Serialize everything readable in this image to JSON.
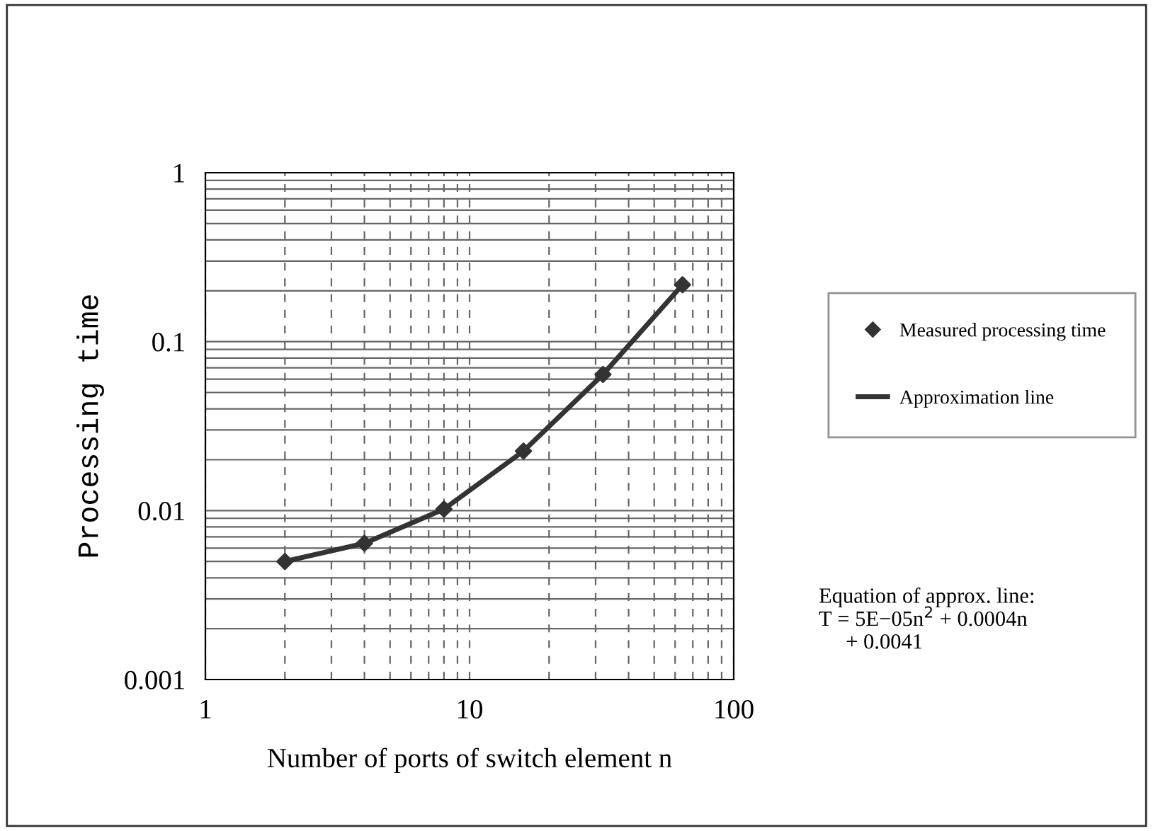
{
  "chart_data": {
    "type": "scatter",
    "xlabel": "Number of ports of switch element n",
    "ylabel": "Processing time",
    "log": "xy",
    "xlim": [
      1,
      100
    ],
    "ylim": [
      0.001,
      1
    ],
    "xticks": [
      1,
      10,
      100
    ],
    "yticks": [
      {
        "value": 0.001,
        "label": "0.001"
      },
      {
        "value": 0.01,
        "label": "0.01"
      },
      {
        "value": 0.1,
        "label": "0.1"
      },
      1
    ],
    "grid": true,
    "legend": "right",
    "series": [
      {
        "name": "Measured processing time",
        "marker": "diamond",
        "color": "#333333",
        "x": [
          2,
          4,
          8,
          16,
          32,
          64
        ],
        "values": [
          0.005,
          0.0064,
          0.0102,
          0.0225,
          0.064,
          0.217
        ]
      },
      {
        "name": "Approximation line",
        "type": "line",
        "marker": "none",
        "line_style": "solid",
        "color": "#333333",
        "x": [
          2,
          4,
          8,
          16,
          32,
          64
        ],
        "values": [
          0.005,
          0.0064,
          0.0102,
          0.0225,
          0.064,
          0.217
        ]
      }
    ],
    "annotations": [
      "Equation of approx. line:\nT = 5E−05n$^{2}$ + 0.0004n\n     + 0.0041"
    ]
  }
}
